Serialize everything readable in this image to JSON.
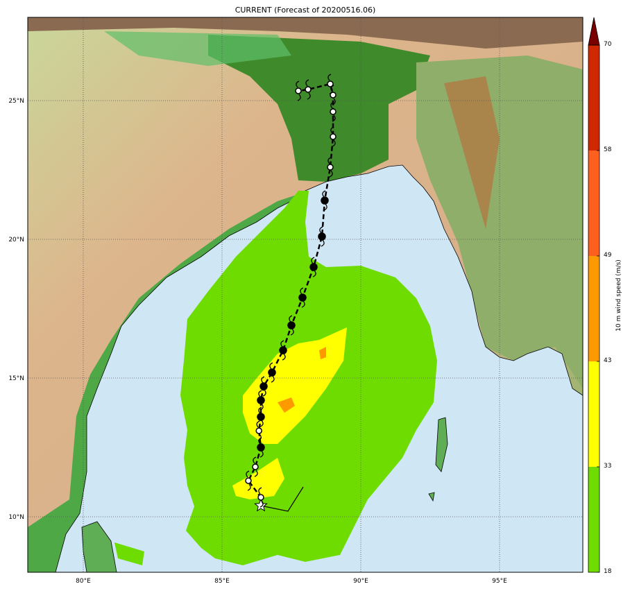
{
  "title": "CURRENT (Forecast of 20200516.06)",
  "map": {
    "extent": {
      "lon": [
        78,
        98
      ],
      "lat": [
        8,
        28
      ]
    },
    "lon_ticks": [
      {
        "value": 80,
        "label": "80°E"
      },
      {
        "value": 85,
        "label": "85°E"
      },
      {
        "value": 90,
        "label": "90°E"
      },
      {
        "value": 95,
        "label": "95°E"
      }
    ],
    "lat_ticks": [
      {
        "value": 25,
        "label": "25°N"
      },
      {
        "value": 20,
        "label": "20°N"
      },
      {
        "value": 15,
        "label": "15°N"
      },
      {
        "value": 10,
        "label": "10°N"
      }
    ],
    "grid": "dotted",
    "colors": {
      "ocean": "#cfe6f5",
      "wind_18_33": "#6fdc00",
      "wind_33_43": "#ffff00",
      "wind_43_49": "#ff9900"
    },
    "track": [
      {
        "lon": 86.4,
        "lat": 10.4,
        "marker": "star"
      },
      {
        "lon": 86.4,
        "lat": 10.7,
        "marker": "open"
      },
      {
        "lon": 85.95,
        "lat": 11.3,
        "marker": "open"
      },
      {
        "lon": 86.2,
        "lat": 11.8,
        "marker": "open"
      },
      {
        "lon": 86.4,
        "lat": 12.5,
        "marker": "filled"
      },
      {
        "lon": 86.33,
        "lat": 13.1,
        "marker": "open"
      },
      {
        "lon": 86.4,
        "lat": 13.6,
        "marker": "filled"
      },
      {
        "lon": 86.4,
        "lat": 14.2,
        "marker": "filled"
      },
      {
        "lon": 86.5,
        "lat": 14.7,
        "marker": "filled"
      },
      {
        "lon": 86.8,
        "lat": 15.2,
        "marker": "filled"
      },
      {
        "lon": 87.2,
        "lat": 16.0,
        "marker": "filled"
      },
      {
        "lon": 87.5,
        "lat": 16.9,
        "marker": "filled"
      },
      {
        "lon": 87.9,
        "lat": 17.9,
        "marker": "filled"
      },
      {
        "lon": 88.3,
        "lat": 19.0,
        "marker": "filled"
      },
      {
        "lon": 88.6,
        "lat": 20.1,
        "marker": "filled"
      },
      {
        "lon": 88.7,
        "lat": 21.4,
        "marker": "filled"
      },
      {
        "lon": 88.9,
        "lat": 22.6,
        "marker": "open"
      },
      {
        "lon": 89.0,
        "lat": 23.7,
        "marker": "open"
      },
      {
        "lon": 89.0,
        "lat": 24.6,
        "marker": "open"
      },
      {
        "lon": 89.0,
        "lat": 25.2,
        "marker": "open"
      },
      {
        "lon": 88.9,
        "lat": 25.6,
        "marker": "open"
      },
      {
        "lon": 88.1,
        "lat": 25.4,
        "marker": "open"
      },
      {
        "lon": 87.75,
        "lat": 25.35,
        "marker": "open"
      }
    ]
  },
  "colorbar": {
    "label": "10 m wind speed (m/s)",
    "ticks": [
      "18",
      "33",
      "43",
      "49",
      "58",
      "70"
    ],
    "bands": [
      {
        "from": 18,
        "to": 33,
        "color": "#6fdc00"
      },
      {
        "from": 33,
        "to": 43,
        "color": "#ffff00"
      },
      {
        "from": 43,
        "to": 49,
        "color": "#ff9900"
      },
      {
        "from": 49,
        "to": 58,
        "color": "#ff6020"
      },
      {
        "from": 58,
        "to": 70,
        "color": "#d02800"
      }
    ],
    "extend_color": "#7a0000",
    "extend": "max"
  }
}
